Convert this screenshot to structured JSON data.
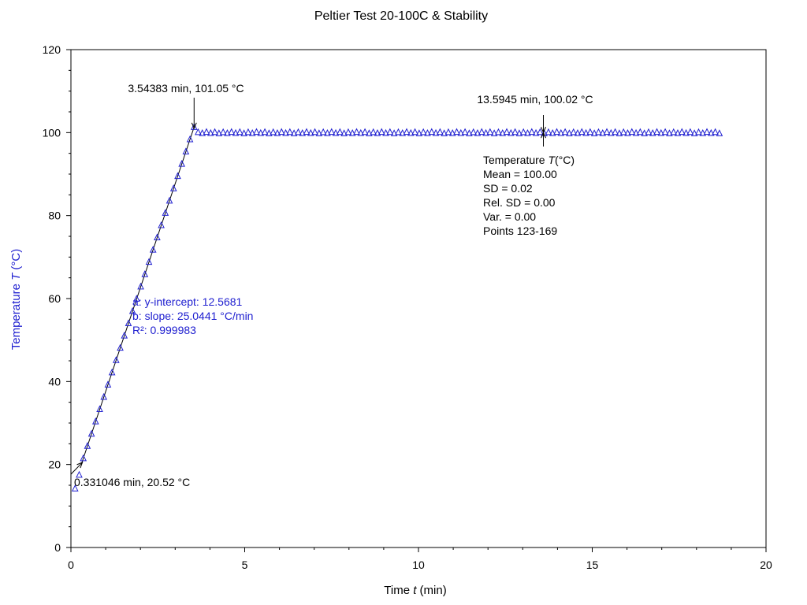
{
  "chart_data": {
    "type": "scatter",
    "title": "Peltier Test 20-100C & Stability",
    "xlabel": {
      "prefix": "Time ",
      "symbol": "t",
      "unit": " (min)"
    },
    "ylabel": {
      "prefix": "Temperature ",
      "symbol": "T",
      "unit": " (°C)"
    },
    "xlim": [
      0,
      20
    ],
    "ylim": [
      0,
      120
    ],
    "x_ticks": [
      0,
      5,
      10,
      15,
      20
    ],
    "y_ticks": [
      0,
      20,
      40,
      60,
      80,
      100,
      120
    ],
    "grid": false,
    "colors": {
      "marker": "#2020d0",
      "fit_line": "#000000",
      "ylabel": "#2020d0",
      "fit_text": "#2020d0"
    },
    "series": [
      {
        "marker": "triangle",
        "ramp": {
          "x_start": 0.12,
          "x_end": 3.54383,
          "step": 0.12,
          "y_first": 14.2,
          "y_second": 17.5
        },
        "plateau": {
          "x_start": 3.66,
          "x_end": 18.72,
          "step": 0.12,
          "y_mean": 100.0,
          "y_sd": 0.02
        }
      }
    ],
    "fit": {
      "x_range": [
        0.3,
        3.54383
      ],
      "intercept": 12.5681,
      "slope": 25.0441,
      "lines": [
        "a: y-intercept: 12.5681",
        "b: slope: 25.0441 °C/min",
        "R²: 0.999983"
      ]
    },
    "annotations": [
      {
        "label": "0.331046 min, 20.52 °C",
        "x": 0.331046,
        "y": 20.52
      },
      {
        "label": "3.54383 min, 101.05 °C",
        "x": 3.54383,
        "y": 101.05
      },
      {
        "label": "13.5945 min, 100.02 °C",
        "x": 13.5945,
        "y": 100.02
      }
    ],
    "stats": {
      "heading_prefix": "Temperature ",
      "heading_symbol": "T",
      "heading_unit": "(°C)",
      "lines": [
        "Mean = 100.00",
        "SD = 0.02",
        "Rel. SD = 0.00",
        "Var. = 0.00",
        "Points 123-169"
      ]
    }
  }
}
